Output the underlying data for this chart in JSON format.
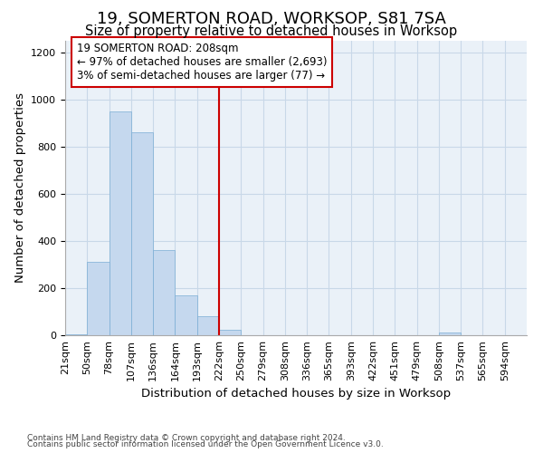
{
  "title": "19, SOMERTON ROAD, WORKSOP, S81 7SA",
  "subtitle": "Size of property relative to detached houses in Worksop",
  "xlabel": "Distribution of detached houses by size in Worksop",
  "ylabel": "Number of detached properties",
  "footnote1": "Contains HM Land Registry data © Crown copyright and database right 2024.",
  "footnote2": "Contains public sector information licensed under the Open Government Licence v3.0.",
  "bar_categories": [
    "21sqm",
    "50sqm",
    "78sqm",
    "107sqm",
    "136sqm",
    "164sqm",
    "193sqm",
    "222sqm",
    "250sqm",
    "279sqm",
    "308sqm",
    "336sqm",
    "365sqm",
    "393sqm",
    "422sqm",
    "451sqm",
    "479sqm",
    "508sqm",
    "537sqm",
    "565sqm",
    "594sqm"
  ],
  "bar_values": [
    5,
    310,
    950,
    860,
    360,
    170,
    80,
    25,
    0,
    0,
    0,
    0,
    0,
    0,
    0,
    0,
    0,
    10,
    0,
    0,
    0
  ],
  "bar_color": "#c5d8ee",
  "bar_edge_color": "#7aadd4",
  "property_label": "19 SOMERTON ROAD: 208sqm",
  "annotation_line1": "← 97% of detached houses are smaller (2,693)",
  "annotation_line2": "3% of semi-detached houses are larger (77) →",
  "vline_color": "#cc0000",
  "vline_index": 7,
  "ylim": [
    0,
    1250
  ],
  "yticks": [
    0,
    200,
    400,
    600,
    800,
    1000,
    1200
  ],
  "bg_color": "#ffffff",
  "plot_bg_color": "#eaf1f8",
  "grid_color": "#c8d8e8",
  "title_fontsize": 13,
  "subtitle_fontsize": 10.5,
  "axis_label_fontsize": 9.5,
  "tick_fontsize": 8,
  "annot_fontsize": 8.5,
  "footnote_fontsize": 6.5
}
